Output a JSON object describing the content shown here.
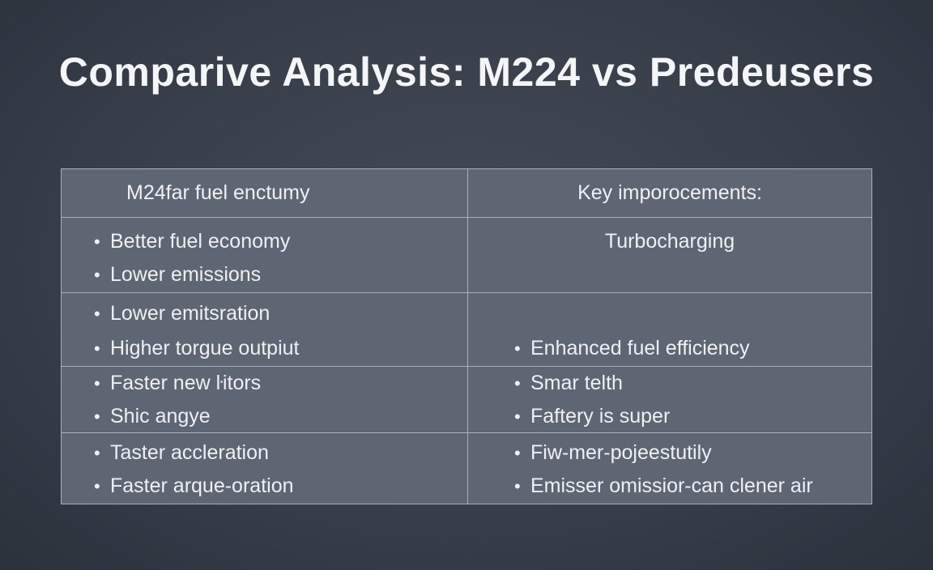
{
  "title": "Comparive Analysis: M224 vs Predeusers",
  "table": {
    "header": {
      "left": "M24far fuel enctumy",
      "right": "Key imporocements:"
    },
    "rows": [
      {
        "left": [
          "Better fuel economy",
          "Lower emissions"
        ],
        "right_plain": "Turbocharging"
      },
      {
        "left": [
          "Lower emitsration",
          "Higher torgue outpiut"
        ],
        "right": [
          "Enhanced fuel efficiency"
        ]
      },
      {
        "left": [
          "Faster new ŀitors",
          "Shic angye"
        ],
        "right": [
          "Smar telth",
          "Faftery is super"
        ]
      },
      {
        "left": [
          "Taster accleration",
          "Faster arque-oration"
        ],
        "right": [
          "Fiw-mer-pojeestutily",
          "Emisser omissior-can clener air"
        ]
      }
    ],
    "bullet": "•"
  },
  "colors": {
    "background": "#383f4b",
    "table_fill": "#5f6673",
    "grid_lines": "#aab1bc",
    "text": "#f2f3f5"
  }
}
